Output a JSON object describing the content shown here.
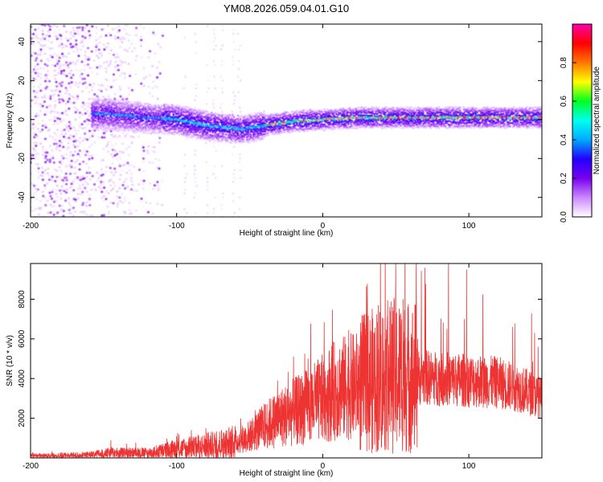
{
  "title": "YM08.2026.059.04.01.G10",
  "chart_data": [
    {
      "type": "heatmap",
      "name": "spectrogram",
      "xlabel": "Height of straight line (km)",
      "ylabel": "Frequency (Hz)",
      "xlim": [
        -200,
        150
      ],
      "ylim": [
        -50,
        49
      ],
      "x_ticks": [
        -200,
        -100,
        0,
        100
      ],
      "y_ticks": [
        -40,
        -20,
        0,
        20,
        40
      ],
      "ridge_description": "Narrow high-amplitude band near 0 Hz; dips to about -5 Hz around -55 km, rises to about +1 Hz after 0 km",
      "ridge_points": [
        {
          "x": -150,
          "y": 3
        },
        {
          "x": -120,
          "y": 1
        },
        {
          "x": -100,
          "y": 0
        },
        {
          "x": -80,
          "y": -3
        },
        {
          "x": -55,
          "y": -5
        },
        {
          "x": -40,
          "y": -3
        },
        {
          "x": -20,
          "y": -1
        },
        {
          "x": 0,
          "y": 0
        },
        {
          "x": 25,
          "y": 1
        },
        {
          "x": 50,
          "y": 1
        },
        {
          "x": 100,
          "y": 1
        },
        {
          "x": 150,
          "y": 1
        }
      ],
      "colorbar": {
        "label": "Normalized spectral amplitude",
        "range": [
          0,
          1
        ],
        "ticks": [
          "0.0",
          "0.2",
          "0.4",
          "0.6",
          "0.8"
        ],
        "tick_values": [
          0,
          0.2,
          0.4,
          0.6,
          0.8
        ],
        "colors": [
          "#ffffff",
          "#cc88ff",
          "#7700ee",
          "#2200ff",
          "#00aaff",
          "#00ffee",
          "#00ff22",
          "#ffff00",
          "#ff7700",
          "#ff0000",
          "#ff00aa"
        ]
      }
    },
    {
      "type": "line",
      "name": "snr",
      "xlabel": "Height of straight line (km)",
      "ylabel": "SNR (10 * v/v)",
      "xlim": [
        -200,
        150
      ],
      "ylim": [
        0,
        9800
      ],
      "x_ticks": [
        -200,
        -100,
        0,
        100
      ],
      "y_ticks": [
        2000,
        4000,
        6000,
        8000
      ],
      "line_color": "#ee3333",
      "envelope": [
        {
          "x": -200,
          "y": 100
        },
        {
          "x": -160,
          "y": 150
        },
        {
          "x": -145,
          "y": 250
        },
        {
          "x": -120,
          "y": 250
        },
        {
          "x": -100,
          "y": 450
        },
        {
          "x": -80,
          "y": 600
        },
        {
          "x": -60,
          "y": 800
        },
        {
          "x": -50,
          "y": 1100
        },
        {
          "x": -40,
          "y": 1600
        },
        {
          "x": -30,
          "y": 2000
        },
        {
          "x": -20,
          "y": 2300
        },
        {
          "x": -10,
          "y": 2600
        },
        {
          "x": 0,
          "y": 3000
        },
        {
          "x": 10,
          "y": 3500
        },
        {
          "x": 20,
          "y": 3600
        },
        {
          "x": 30,
          "y": 3800
        },
        {
          "x": 40,
          "y": 4000
        },
        {
          "x": 50,
          "y": 4200
        },
        {
          "x": 60,
          "y": 4100
        },
        {
          "x": 80,
          "y": 4000
        },
        {
          "x": 100,
          "y": 3900
        },
        {
          "x": 120,
          "y": 3800
        },
        {
          "x": 135,
          "y": 3500
        },
        {
          "x": 150,
          "y": 3000
        }
      ],
      "peaks": [
        {
          "x": -145,
          "y": 900
        },
        {
          "x": -100,
          "y": 1100
        },
        {
          "x": -90,
          "y": 1400
        },
        {
          "x": -80,
          "y": 1500
        },
        {
          "x": -60,
          "y": 1600
        },
        {
          "x": -20,
          "y": 5100
        },
        {
          "x": -10,
          "y": 5000
        },
        {
          "x": 30,
          "y": 7500
        },
        {
          "x": 38,
          "y": 7700
        },
        {
          "x": 50,
          "y": 9800
        },
        {
          "x": 55,
          "y": 8000
        },
        {
          "x": 65,
          "y": 6000
        },
        {
          "x": 85,
          "y": 6500
        },
        {
          "x": 97,
          "y": 7000
        },
        {
          "x": 130,
          "y": 6600
        },
        {
          "x": 145,
          "y": 6300
        }
      ]
    }
  ]
}
